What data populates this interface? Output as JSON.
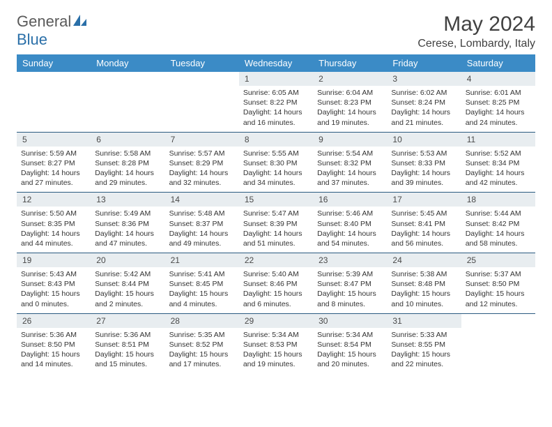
{
  "logo": {
    "text1": "General",
    "text2": "Blue"
  },
  "title": "May 2024",
  "location": "Cerese, Lombardy, Italy",
  "day_headers": [
    "Sunday",
    "Monday",
    "Tuesday",
    "Wednesday",
    "Thursday",
    "Friday",
    "Saturday"
  ],
  "colors": {
    "header_bg": "#3b8bc6",
    "header_text": "#ffffff",
    "daynum_bg": "#e8edf0",
    "border": "#2a5a80",
    "logo_gray": "#5a5a5a",
    "logo_blue": "#2a6fa8"
  },
  "weeks": [
    [
      {
        "n": "",
        "sr": "",
        "ss": "",
        "dl": ""
      },
      {
        "n": "",
        "sr": "",
        "ss": "",
        "dl": ""
      },
      {
        "n": "",
        "sr": "",
        "ss": "",
        "dl": ""
      },
      {
        "n": "1",
        "sr": "Sunrise: 6:05 AM",
        "ss": "Sunset: 8:22 PM",
        "dl": "Daylight: 14 hours and 16 minutes."
      },
      {
        "n": "2",
        "sr": "Sunrise: 6:04 AM",
        "ss": "Sunset: 8:23 PM",
        "dl": "Daylight: 14 hours and 19 minutes."
      },
      {
        "n": "3",
        "sr": "Sunrise: 6:02 AM",
        "ss": "Sunset: 8:24 PM",
        "dl": "Daylight: 14 hours and 21 minutes."
      },
      {
        "n": "4",
        "sr": "Sunrise: 6:01 AM",
        "ss": "Sunset: 8:25 PM",
        "dl": "Daylight: 14 hours and 24 minutes."
      }
    ],
    [
      {
        "n": "5",
        "sr": "Sunrise: 5:59 AM",
        "ss": "Sunset: 8:27 PM",
        "dl": "Daylight: 14 hours and 27 minutes."
      },
      {
        "n": "6",
        "sr": "Sunrise: 5:58 AM",
        "ss": "Sunset: 8:28 PM",
        "dl": "Daylight: 14 hours and 29 minutes."
      },
      {
        "n": "7",
        "sr": "Sunrise: 5:57 AM",
        "ss": "Sunset: 8:29 PM",
        "dl": "Daylight: 14 hours and 32 minutes."
      },
      {
        "n": "8",
        "sr": "Sunrise: 5:55 AM",
        "ss": "Sunset: 8:30 PM",
        "dl": "Daylight: 14 hours and 34 minutes."
      },
      {
        "n": "9",
        "sr": "Sunrise: 5:54 AM",
        "ss": "Sunset: 8:32 PM",
        "dl": "Daylight: 14 hours and 37 minutes."
      },
      {
        "n": "10",
        "sr": "Sunrise: 5:53 AM",
        "ss": "Sunset: 8:33 PM",
        "dl": "Daylight: 14 hours and 39 minutes."
      },
      {
        "n": "11",
        "sr": "Sunrise: 5:52 AM",
        "ss": "Sunset: 8:34 PM",
        "dl": "Daylight: 14 hours and 42 minutes."
      }
    ],
    [
      {
        "n": "12",
        "sr": "Sunrise: 5:50 AM",
        "ss": "Sunset: 8:35 PM",
        "dl": "Daylight: 14 hours and 44 minutes."
      },
      {
        "n": "13",
        "sr": "Sunrise: 5:49 AM",
        "ss": "Sunset: 8:36 PM",
        "dl": "Daylight: 14 hours and 47 minutes."
      },
      {
        "n": "14",
        "sr": "Sunrise: 5:48 AM",
        "ss": "Sunset: 8:37 PM",
        "dl": "Daylight: 14 hours and 49 minutes."
      },
      {
        "n": "15",
        "sr": "Sunrise: 5:47 AM",
        "ss": "Sunset: 8:39 PM",
        "dl": "Daylight: 14 hours and 51 minutes."
      },
      {
        "n": "16",
        "sr": "Sunrise: 5:46 AM",
        "ss": "Sunset: 8:40 PM",
        "dl": "Daylight: 14 hours and 54 minutes."
      },
      {
        "n": "17",
        "sr": "Sunrise: 5:45 AM",
        "ss": "Sunset: 8:41 PM",
        "dl": "Daylight: 14 hours and 56 minutes."
      },
      {
        "n": "18",
        "sr": "Sunrise: 5:44 AM",
        "ss": "Sunset: 8:42 PM",
        "dl": "Daylight: 14 hours and 58 minutes."
      }
    ],
    [
      {
        "n": "19",
        "sr": "Sunrise: 5:43 AM",
        "ss": "Sunset: 8:43 PM",
        "dl": "Daylight: 15 hours and 0 minutes."
      },
      {
        "n": "20",
        "sr": "Sunrise: 5:42 AM",
        "ss": "Sunset: 8:44 PM",
        "dl": "Daylight: 15 hours and 2 minutes."
      },
      {
        "n": "21",
        "sr": "Sunrise: 5:41 AM",
        "ss": "Sunset: 8:45 PM",
        "dl": "Daylight: 15 hours and 4 minutes."
      },
      {
        "n": "22",
        "sr": "Sunrise: 5:40 AM",
        "ss": "Sunset: 8:46 PM",
        "dl": "Daylight: 15 hours and 6 minutes."
      },
      {
        "n": "23",
        "sr": "Sunrise: 5:39 AM",
        "ss": "Sunset: 8:47 PM",
        "dl": "Daylight: 15 hours and 8 minutes."
      },
      {
        "n": "24",
        "sr": "Sunrise: 5:38 AM",
        "ss": "Sunset: 8:48 PM",
        "dl": "Daylight: 15 hours and 10 minutes."
      },
      {
        "n": "25",
        "sr": "Sunrise: 5:37 AM",
        "ss": "Sunset: 8:50 PM",
        "dl": "Daylight: 15 hours and 12 minutes."
      }
    ],
    [
      {
        "n": "26",
        "sr": "Sunrise: 5:36 AM",
        "ss": "Sunset: 8:50 PM",
        "dl": "Daylight: 15 hours and 14 minutes."
      },
      {
        "n": "27",
        "sr": "Sunrise: 5:36 AM",
        "ss": "Sunset: 8:51 PM",
        "dl": "Daylight: 15 hours and 15 minutes."
      },
      {
        "n": "28",
        "sr": "Sunrise: 5:35 AM",
        "ss": "Sunset: 8:52 PM",
        "dl": "Daylight: 15 hours and 17 minutes."
      },
      {
        "n": "29",
        "sr": "Sunrise: 5:34 AM",
        "ss": "Sunset: 8:53 PM",
        "dl": "Daylight: 15 hours and 19 minutes."
      },
      {
        "n": "30",
        "sr": "Sunrise: 5:34 AM",
        "ss": "Sunset: 8:54 PM",
        "dl": "Daylight: 15 hours and 20 minutes."
      },
      {
        "n": "31",
        "sr": "Sunrise: 5:33 AM",
        "ss": "Sunset: 8:55 PM",
        "dl": "Daylight: 15 hours and 22 minutes."
      },
      {
        "n": "",
        "sr": "",
        "ss": "",
        "dl": ""
      }
    ]
  ]
}
